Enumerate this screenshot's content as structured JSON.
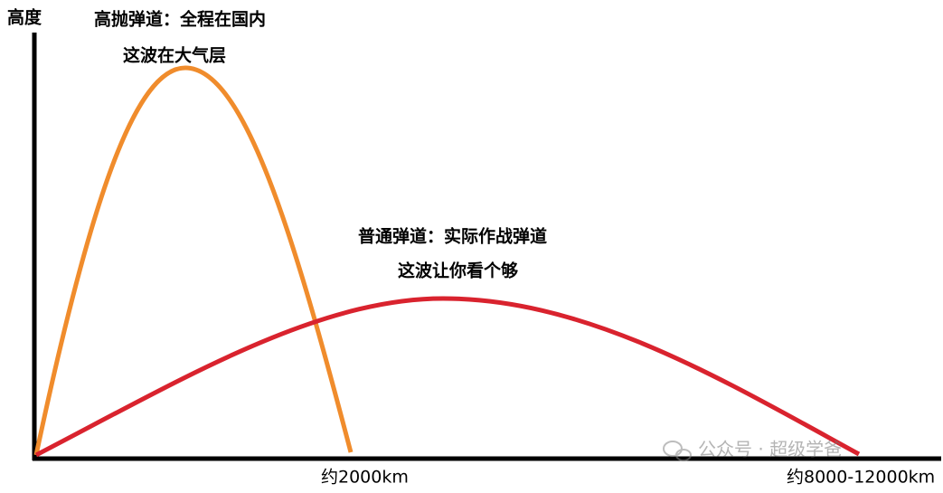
{
  "axis": {
    "y_label": "高度"
  },
  "lofted": {
    "title": "高抛弹道：全程在国内",
    "note": "这波在大气层",
    "range": "约2000km"
  },
  "normal": {
    "title": "普通弹道：实际作战弹道",
    "note": "这波让你看个够",
    "range": "约8000-12000km"
  },
  "watermark": "公众号 · 超级学爸"
}
